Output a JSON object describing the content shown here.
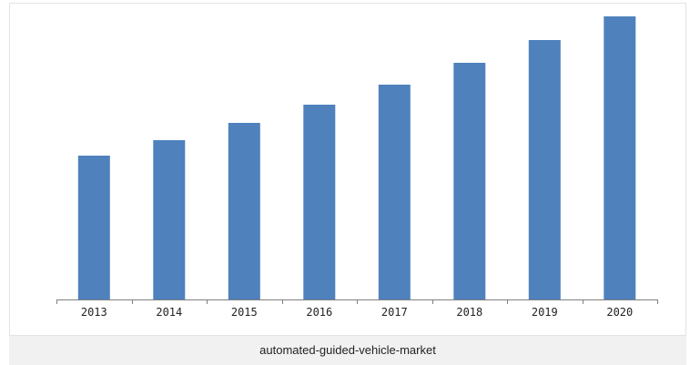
{
  "chart_data": {
    "type": "bar",
    "categories": [
      "2013",
      "2014",
      "2015",
      "2016",
      "2017",
      "2018",
      "2019",
      "2020"
    ],
    "values": [
      158,
      175,
      194,
      214,
      236,
      260,
      285,
      311
    ],
    "ylim": [
      0,
      320
    ],
    "grid": false,
    "legend": "none",
    "bar_color": "#4f81bd"
  },
  "caption": "automated-guided-vehicle-market"
}
